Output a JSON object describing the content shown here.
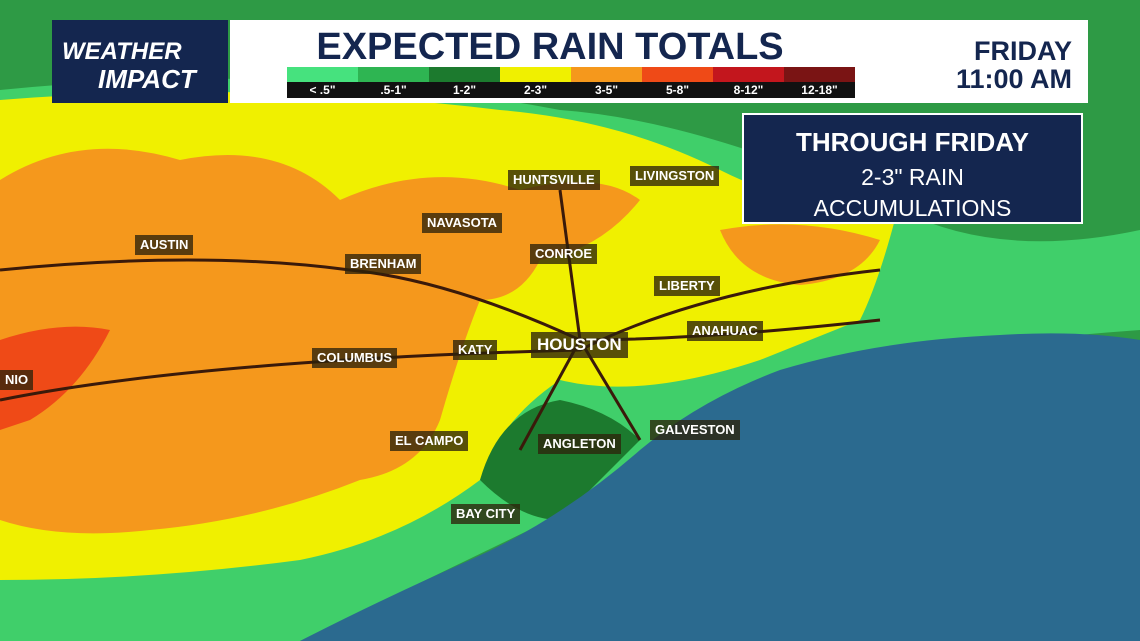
{
  "header": {
    "logo": [
      "WEATHER",
      "IMPACT"
    ],
    "title": "EXPECTED RAIN TOTALS",
    "day": "FRIDAY",
    "time": "11:00 AM",
    "legend": [
      {
        "label": "< .5\"",
        "color": "#46e27e"
      },
      {
        "label": ".5-1\"",
        "color": "#2eb552"
      },
      {
        "label": "1-2\"",
        "color": "#1c7a2e"
      },
      {
        "label": "2-3\"",
        "color": "#f0f000"
      },
      {
        "label": "3-5\"",
        "color": "#f5981c"
      },
      {
        "label": "5-8\"",
        "color": "#ef4a17"
      },
      {
        "label": "8-12\"",
        "color": "#c3161d"
      },
      {
        "label": "12-18\"",
        "color": "#7a1414"
      }
    ]
  },
  "info_box": {
    "lines": [
      "THROUGH FRIDAY",
      "2-3\" RAIN",
      "ACCUMULATIONS"
    ]
  },
  "cities": [
    "HUNTSVILLE",
    "LIVINGSTON",
    "NAVASOTA",
    "AUSTIN",
    "CONROE",
    "BRENHAM",
    "LIBERTY",
    "ANAHUAC",
    "HOUSTON",
    "KATY",
    "COLUMBUS",
    "NIO",
    "GALVESTON",
    "EL CAMPO",
    "ANGLETON",
    "BAY CITY"
  ]
}
